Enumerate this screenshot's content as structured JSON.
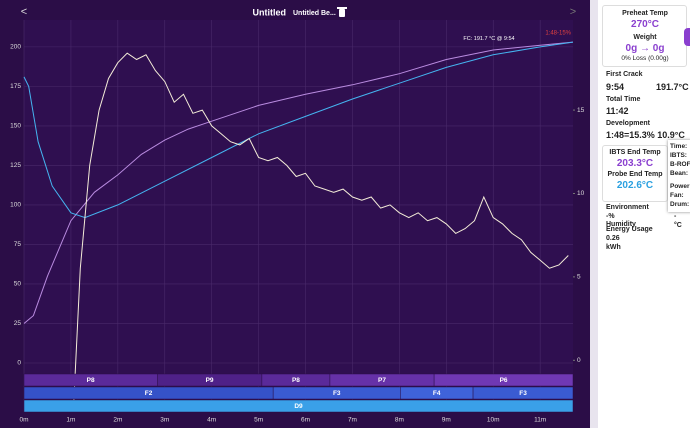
{
  "header": {
    "back": "<",
    "title": "Untitled",
    "subtitle": "Untitled Be...",
    "forward": ">"
  },
  "chart_data": {
    "type": "line",
    "xlim": [
      0,
      11.7
    ],
    "ylim": [
      -31,
      217
    ],
    "y2lim": [
      -3.1,
      20.4
    ],
    "xticks": [
      {
        "value": 0,
        "label": "0m"
      },
      {
        "value": 1,
        "label": "1m"
      },
      {
        "value": 2,
        "label": "2m"
      },
      {
        "value": 3,
        "label": "3m"
      },
      {
        "value": 4,
        "label": "4m"
      },
      {
        "value": 5,
        "label": "5m"
      },
      {
        "value": 6,
        "label": "6m"
      },
      {
        "value": 7,
        "label": "7m"
      },
      {
        "value": 8,
        "label": "8m"
      },
      {
        "value": 9,
        "label": "9m"
      },
      {
        "value": 10,
        "label": "10m"
      },
      {
        "value": 11,
        "label": "11m"
      }
    ],
    "yticks": [
      0,
      25,
      50,
      75,
      100,
      125,
      150,
      175,
      200
    ],
    "y2ticks": [
      0,
      5,
      10,
      15
    ],
    "grid": true,
    "series": [
      {
        "color": "#b98be0",
        "x": [
          0,
          0.2,
          0.5,
          1,
          1.5,
          2,
          2.5,
          3,
          3.5,
          4,
          5,
          6,
          7,
          8,
          9,
          10,
          11,
          11.7
        ],
        "values": [
          25,
          30,
          55,
          90,
          108,
          119,
          132,
          141,
          148,
          153,
          163,
          170,
          176,
          183,
          192,
          198,
          201,
          203
        ]
      },
      {
        "color": "#45b4f0",
        "x": [
          0,
          0.1,
          0.3,
          0.6,
          1,
          1.3,
          2,
          3,
          4,
          5,
          6,
          7,
          8,
          9,
          10,
          11,
          11.7
        ],
        "values": [
          181,
          175,
          140,
          112,
          95,
          92,
          100,
          115,
          130,
          145,
          156,
          167,
          177,
          187,
          195,
          200,
          203
        ]
      },
      {
        "color": "#f4ecd8",
        "x": [
          1.05,
          1.2,
          1.4,
          1.6,
          1.8,
          2.0,
          2.2,
          2.4,
          2.6,
          2.8,
          3.0,
          3.2,
          3.4,
          3.6,
          3.8,
          4.0,
          4.2,
          4.4,
          4.6,
          4.8,
          5.0,
          5.2,
          5.4,
          5.6,
          5.8,
          6.0,
          6.2,
          6.4,
          6.6,
          6.8,
          7.0,
          7.2,
          7.4,
          7.6,
          7.8,
          8.0,
          8.2,
          8.4,
          8.6,
          8.8,
          9.0,
          9.2,
          9.4,
          9.6,
          9.8,
          10.0,
          10.2,
          10.4,
          10.6,
          10.8,
          11.0,
          11.2,
          11.4,
          11.6
        ],
        "values": [
          -31,
          60,
          125,
          160,
          180,
          190,
          196,
          192,
          195,
          185,
          178,
          165,
          170,
          158,
          160,
          150,
          145,
          140,
          138,
          142,
          130,
          128,
          130,
          125,
          118,
          120,
          112,
          110,
          108,
          110,
          105,
          103,
          105,
          98,
          100,
          95,
          92,
          95,
          90,
          92,
          88,
          82,
          85,
          90,
          105,
          92,
          88,
          82,
          78,
          70,
          65,
          60,
          62,
          68
        ]
      }
    ],
    "annotations": [
      "FC: 191.7 °C @ 9:54",
      "1:48-15%"
    ],
    "phase_rows": [
      {
        "segments": [
          {
            "label": "P8",
            "start": 0,
            "end": 2.84,
            "color": "#5b2a9a"
          },
          {
            "label": "P9",
            "start": 2.84,
            "end": 5.07,
            "color": "#4f2188"
          },
          {
            "label": "P8",
            "start": 5.07,
            "end": 6.52,
            "color": "#5b2a9a"
          },
          {
            "label": "P7",
            "start": 6.52,
            "end": 8.74,
            "color": "#6631a8"
          },
          {
            "label": "P6",
            "start": 8.74,
            "end": 11.7,
            "color": "#7038b4"
          }
        ]
      },
      {
        "segments": [
          {
            "label": "F2",
            "start": 0,
            "end": 5.31,
            "color": "#3552c8"
          },
          {
            "label": "F3",
            "start": 5.31,
            "end": 8.02,
            "color": "#3a5bd2"
          },
          {
            "label": "F4",
            "start": 8.02,
            "end": 9.57,
            "color": "#3f63da"
          },
          {
            "label": "F3",
            "start": 9.57,
            "end": 11.7,
            "color": "#3a5bd2"
          }
        ]
      },
      {
        "segments": [
          {
            "label": "D9",
            "start": 0,
            "end": 11.7,
            "color": "#3aa0e8"
          }
        ]
      }
    ]
  },
  "sidebar": {
    "preheat_label": "Preheat Temp",
    "preheat_value": "270°C",
    "weight_label": "Weight",
    "weight_value": "0g → 0g",
    "loss": "0% Loss (0.00g)",
    "first_crack_label": "First Crack",
    "first_crack_time": "9:54",
    "first_crack_temp": "191.7°C",
    "total_time_label": "Total Time",
    "total_time": "11:42",
    "development_label": "Development",
    "development": "1:48=15.3% 10.9°C",
    "ibts_label": "IBTS End Temp",
    "ibts_value": "203.3°C",
    "probe_label": "Probe End Temp",
    "probe_value": "202.6°C",
    "popup": [
      "Time:",
      "IBTS:",
      "B-ROF",
      "Bean:",
      "Power",
      "Fan:",
      "Drum:"
    ],
    "environment_label": "Environment",
    "environment_value": "-%",
    "humidity_label": "Humidity",
    "humidity_value": "-",
    "temp_unit": "°C",
    "energy_label": "Energy Usage",
    "energy_value": "0.26",
    "energy_unit": "kWh"
  }
}
